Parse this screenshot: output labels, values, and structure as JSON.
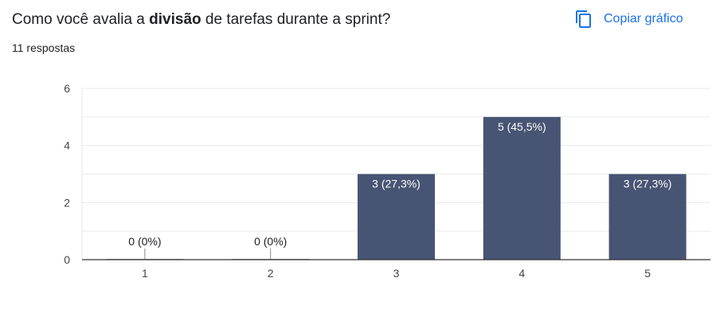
{
  "question": {
    "prefix": "Como você avalia a ",
    "bold": "divisão",
    "suffix": " de tarefas durante a sprint?"
  },
  "responses_label": "11 respostas",
  "copy_button": {
    "label": "Copiar gráfico",
    "icon": "copy-icon"
  },
  "colors": {
    "bar": "#475473",
    "accent": "#1a73e8",
    "grid": "#e8eaed",
    "axis": "#333333"
  },
  "chart_data": {
    "type": "bar",
    "categories": [
      "1",
      "2",
      "3",
      "4",
      "5"
    ],
    "values": [
      0,
      0,
      3,
      5,
      3
    ],
    "data_labels": [
      "0 (0%)",
      "0 (0%)",
      "3 (27,3%)",
      "5 (45,5%)",
      "3 (27,3%)"
    ],
    "y_ticks": [
      "0",
      "2",
      "4",
      "6"
    ],
    "ylim": [
      0,
      6
    ],
    "grid": true
  }
}
